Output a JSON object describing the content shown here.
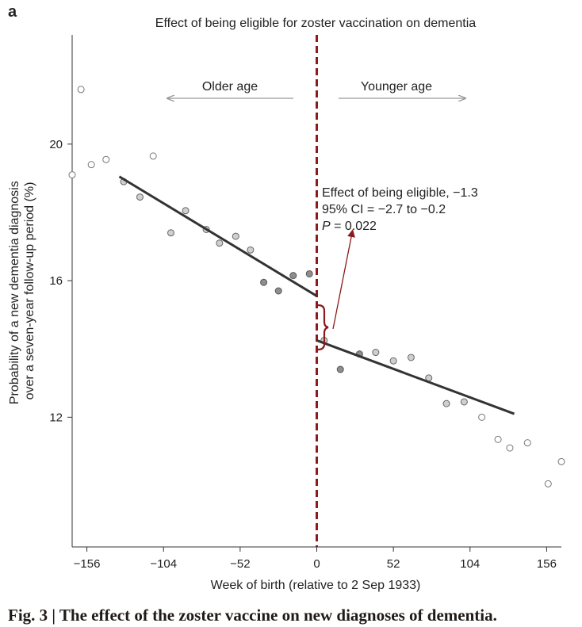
{
  "panel_label": "a",
  "caption": "Fig. 3 | The effect of the zoster vaccine on new diagnoses of dementia.",
  "chart_data": {
    "type": "scatter",
    "title": "Effect of being eligible for zoster vaccination on dementia",
    "xlabel": "Week of birth (relative to 2 Sep 1933)",
    "ylabel_lines": [
      "Probability of a new dementia diagnosis",
      "over a seven-year follow-up period (%)"
    ],
    "xlim": [
      -166,
      166
    ],
    "ylim": [
      8.2,
      23.2
    ],
    "xticks": [
      -156,
      -104,
      -52,
      0,
      52,
      104,
      156
    ],
    "xtick_labels": [
      "−156",
      "−104",
      "−52",
      "0",
      "52",
      "104",
      "156"
    ],
    "yticks": [
      12,
      16,
      20
    ],
    "ytick_labels": [
      "12",
      "16",
      "20"
    ],
    "cutoff_x": 0,
    "direction_labels": {
      "older": "Older age",
      "younger": "Younger age"
    },
    "annotation": {
      "line1": "Effect of being eligible, −1.3",
      "line2": "95% CI = −2.7 to −0.2",
      "line3_italic": "P",
      "line3_rest": " = 0.022"
    },
    "series": [
      {
        "role": "outside-bandwidth",
        "x": [
          -166,
          -160,
          -153,
          -143,
          -111,
          112,
          123,
          131,
          143,
          157,
          166
        ],
        "y": [
          19.1,
          21.6,
          19.4,
          19.55,
          19.65,
          12.0,
          11.35,
          11.1,
          11.25,
          10.05,
          10.7
        ]
      },
      {
        "role": "inside-bandwidth-light",
        "x": [
          -131,
          -120,
          -99,
          -89,
          -75,
          -66,
          -55,
          -45,
          5,
          40,
          52,
          64,
          76,
          88,
          100
        ],
        "y": [
          18.9,
          18.45,
          17.4,
          18.05,
          17.5,
          17.1,
          17.3,
          16.9,
          14.25,
          13.9,
          13.65,
          13.75,
          13.15,
          12.4,
          12.45
        ]
      },
      {
        "role": "inside-bandwidth-dark",
        "x": [
          -36,
          -26,
          -16,
          -5,
          16,
          29
        ],
        "y": [
          15.95,
          15.7,
          16.15,
          16.2,
          13.4,
          13.85
        ]
      }
    ],
    "fit_lines": [
      {
        "name": "left",
        "x": [
          -134,
          0
        ],
        "y": [
          19.05,
          15.55
        ]
      },
      {
        "name": "right",
        "x": [
          0,
          134
        ],
        "y": [
          14.25,
          12.1
        ]
      }
    ],
    "colors": {
      "cutoff": "#8b1a1a",
      "fit": "#333333",
      "arrow": "#999999",
      "bracket": "#8b1a1a"
    }
  }
}
